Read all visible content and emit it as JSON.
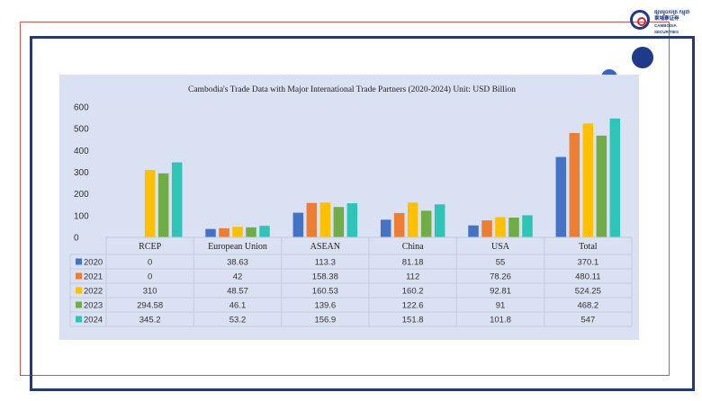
{
  "logo": {
    "khmer_line": "ផ្សារមូលបត្រ កម្ពុជា",
    "chinese_line": "柬埔寨证券",
    "english_line": "CAMBODIA SECURITIES"
  },
  "chart_data": {
    "type": "bar",
    "title": "Cambodia's Trade Data with Major International Trade Partners (2020-2024) Unit: USD Billion",
    "xlabel": "",
    "ylabel": "",
    "ylim": [
      0,
      600
    ],
    "yticks": [
      "0",
      "100",
      "200",
      "300",
      "400",
      "500",
      "600"
    ],
    "grid": false,
    "legend": "table-left",
    "categories": [
      "RCEP",
      "European Union",
      "ASEAN",
      "China",
      "USA",
      "Total"
    ],
    "series": [
      {
        "name": "2020",
        "color": "#4472c4",
        "values": [
          0,
          38.63,
          113.3,
          81.18,
          55,
          370.1
        ],
        "labels": [
          "0",
          "38.63",
          "113.3",
          "81.18",
          "55",
          "370.1"
        ]
      },
      {
        "name": "2021",
        "color": "#ed7d31",
        "values": [
          0,
          42,
          158.38,
          112,
          78.26,
          480.11
        ],
        "labels": [
          "0",
          "42",
          "158.38",
          "112",
          "78.26",
          "480.11"
        ]
      },
      {
        "name": "2022",
        "color": "#ffc000",
        "values": [
          310,
          48.57,
          160.53,
          160.2,
          92.81,
          524.25
        ],
        "labels": [
          "310",
          "48.57",
          "160.53",
          "160.2",
          "92.81",
          "524.25"
        ]
      },
      {
        "name": "2023",
        "color": "#70ad47",
        "values": [
          294.58,
          46.1,
          139.6,
          122.6,
          91,
          468.2
        ],
        "labels": [
          "294.58",
          "46.1",
          "139.6",
          "122.6",
          "91",
          "468.2"
        ]
      },
      {
        "name": "2024",
        "color": "#2ec4b6",
        "values": [
          345.2,
          53.2,
          156.9,
          151.8,
          101.8,
          547
        ],
        "labels": [
          "345.2",
          "53.2",
          "156.9",
          "151.8",
          "101.8",
          "547"
        ]
      }
    ]
  }
}
